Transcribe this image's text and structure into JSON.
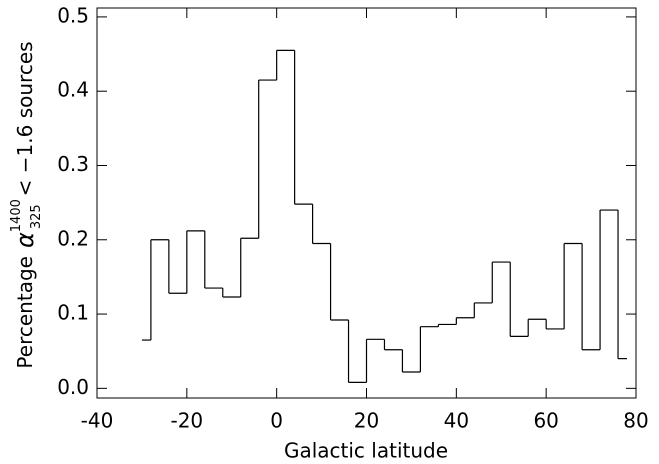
{
  "chart_data": {
    "type": "histogram",
    "xlabel": "Galactic latitude",
    "ylabel": {
      "prefix": "Percentage",
      "symbol": "α",
      "sup": "1400",
      "sub": "325",
      "suffix": "< −1.6 sources"
    },
    "bins": [
      -30,
      -28,
      -24,
      -20,
      -16,
      -12,
      -8,
      -4,
      0,
      4,
      8,
      12,
      16,
      20,
      24,
      28,
      32,
      36,
      40,
      44,
      48,
      52,
      56,
      60,
      64,
      68,
      72,
      76,
      78
    ],
    "values": [
      0.065,
      0.2,
      0.128,
      0.212,
      0.135,
      0.123,
      0.202,
      0.415,
      0.455,
      0.248,
      0.195,
      0.092,
      0.008,
      0.066,
      0.052,
      0.022,
      0.083,
      0.086,
      0.095,
      0.115,
      0.17,
      0.07,
      0.093,
      0.08,
      0.195,
      0.052,
      0.24,
      0.04
    ],
    "color": "#000000",
    "xlim": [
      -40,
      80
    ],
    "xticks": [
      -40,
      -20,
      0,
      20,
      40,
      60,
      80
    ],
    "ylim": [
      -0.013,
      0.512
    ],
    "yticks": [
      {
        "value": 0,
        "label": "0.0"
      },
      0.1,
      0.2,
      0.3,
      0.4,
      0.5
    ]
  }
}
